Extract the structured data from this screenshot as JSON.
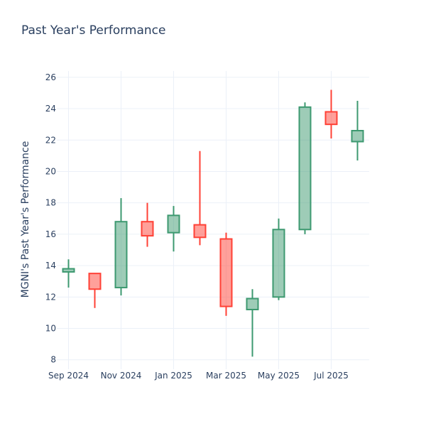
{
  "chart_data": {
    "type": "candlestick",
    "title": "Past Year's Performance",
    "xlabel": "",
    "ylabel": "MGNI's Past Year's Performance",
    "ylim": [
      7.4,
      26.4
    ],
    "yticks": [
      8,
      10,
      12,
      14,
      16,
      18,
      20,
      22,
      24,
      26
    ],
    "xticks": [
      "Sep 2024",
      "Nov 2024",
      "Jan 2025",
      "Mar 2025",
      "May 2025",
      "Jul 2025"
    ],
    "grid": true,
    "colors": {
      "increasing": "#3d9970",
      "decreasing": "#ff4136"
    },
    "x": [
      "2024-09",
      "2024-10",
      "2024-11",
      "2024-12",
      "2025-01",
      "2025-02",
      "2025-03",
      "2025-04",
      "2025-05",
      "2025-06",
      "2025-07",
      "2025-08"
    ],
    "open": [
      13.6,
      13.5,
      12.6,
      16.8,
      16.1,
      16.6,
      15.7,
      11.2,
      12.0,
      16.3,
      23.8,
      21.9
    ],
    "high": [
      14.4,
      13.5,
      18.3,
      18.0,
      17.8,
      21.3,
      16.1,
      12.5,
      17.0,
      24.4,
      25.2,
      24.5
    ],
    "low": [
      12.6,
      11.3,
      12.1,
      15.2,
      14.9,
      15.3,
      10.8,
      8.2,
      11.8,
      16.0,
      22.1,
      20.7
    ],
    "close": [
      13.8,
      12.5,
      16.8,
      15.9,
      17.2,
      15.8,
      11.4,
      11.9,
      16.3,
      24.1,
      23.0,
      22.6
    ]
  }
}
